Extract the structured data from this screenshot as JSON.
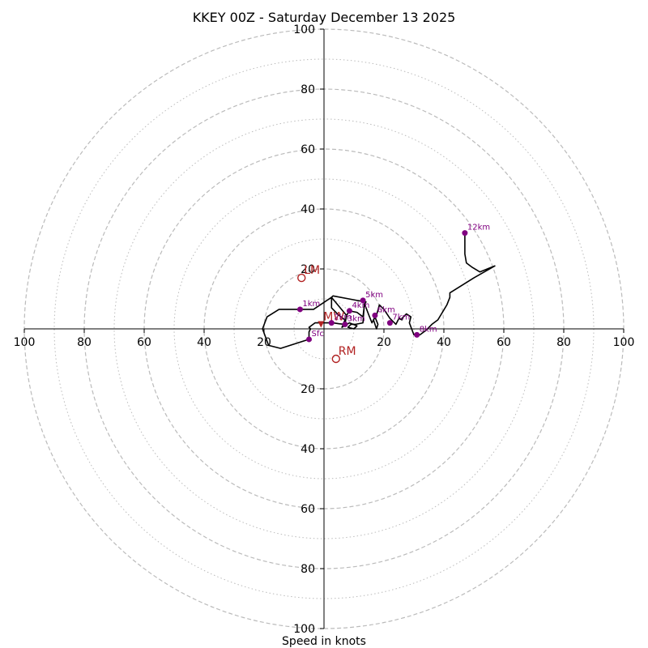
{
  "chart_data": {
    "type": "hodograph",
    "title": "KKEY 00Z - Saturday December 13 2025",
    "xlabel": "Speed in knots",
    "range": [
      -100,
      100
    ],
    "ring_major": [
      20,
      40,
      60,
      80,
      100
    ],
    "ring_minor": [
      10,
      30,
      50,
      70,
      90
    ],
    "ticks": {
      "x_left": [
        100,
        80,
        60,
        40,
        20
      ],
      "x_right": [
        20,
        40,
        60,
        80,
        100
      ],
      "y_top": [
        100,
        80,
        60,
        40,
        20
      ],
      "y_bottom": [
        20,
        40,
        60,
        80,
        100
      ]
    },
    "colors": {
      "trace": "#000000",
      "height_marker": "#800080",
      "motion": "#b22222",
      "grid": "#bbbbbb"
    },
    "hodograph_trace": [
      [
        -5,
        -3.5
      ],
      [
        -5,
        -1
      ],
      [
        -4.5,
        0
      ],
      [
        -5,
        0.5
      ],
      [
        -3,
        2
      ],
      [
        -1,
        2
      ],
      [
        1,
        2
      ],
      [
        3,
        2
      ],
      [
        5,
        1.7
      ],
      [
        7,
        1.5
      ],
      [
        7.5,
        4.5
      ],
      [
        2.5,
        10.5
      ],
      [
        -3.5,
        6.5
      ],
      [
        -8,
        6.5
      ],
      [
        -15,
        6.5
      ],
      [
        -19,
        4
      ],
      [
        -20.5,
        0
      ],
      [
        -18.5,
        -5.5
      ],
      [
        -14.5,
        -6.5
      ],
      [
        -5,
        -3.5
      ],
      [
        -5,
        -1
      ],
      [
        -4.5,
        0
      ],
      [
        -5,
        0.5
      ],
      [
        -3,
        2
      ],
      [
        -1,
        2
      ],
      [
        1,
        2
      ],
      [
        3,
        2
      ],
      [
        5,
        1.7
      ],
      [
        7,
        1.5
      ],
      [
        7.5,
        4.5
      ],
      [
        8.5,
        6
      ],
      [
        11,
        5.5
      ],
      [
        13,
        4
      ],
      [
        13.5,
        8
      ],
      [
        14,
        9
      ],
      [
        11,
        9.5
      ],
      [
        3,
        11
      ],
      [
        2.5,
        10.5
      ],
      [
        2.5,
        7
      ],
      [
        5,
        4.5
      ],
      [
        7,
        3
      ],
      [
        6,
        0.5
      ],
      [
        8.5,
        2
      ],
      [
        11,
        1
      ],
      [
        10,
        0
      ],
      [
        8,
        0.5
      ],
      [
        9,
        1.5
      ],
      [
        10.5,
        1.5
      ],
      [
        13,
        2
      ],
      [
        13.5,
        8.5
      ],
      [
        15,
        4.5
      ],
      [
        16,
        2
      ],
      [
        17,
        4
      ],
      [
        18,
        1.5
      ],
      [
        17.5,
        0
      ],
      [
        16.5,
        3
      ],
      [
        17.5,
        4.5
      ],
      [
        18.5,
        8
      ],
      [
        20,
        6.5
      ],
      [
        22,
        3.5
      ],
      [
        24,
        1.5
      ],
      [
        25,
        3.5
      ],
      [
        26,
        3
      ],
      [
        26,
        3.5
      ],
      [
        27.5,
        5
      ],
      [
        29,
        4
      ],
      [
        28.5,
        2
      ],
      [
        30,
        -2
      ],
      [
        31,
        -2
      ],
      [
        32,
        -2
      ],
      [
        34,
        -0.5
      ],
      [
        36,
        1.5
      ],
      [
        38,
        3
      ],
      [
        41,
        8
      ],
      [
        42,
        10.5
      ],
      [
        42,
        12
      ],
      [
        50,
        17
      ],
      [
        57,
        21
      ],
      [
        52,
        19
      ],
      [
        49.5,
        20.5
      ],
      [
        47.5,
        22
      ],
      [
        47,
        25
      ],
      [
        47,
        29
      ],
      [
        47,
        32
      ]
    ],
    "height_markers": [
      {
        "label": "Sfc",
        "u": -5,
        "v": -3.5
      },
      {
        "label": "1km",
        "u": -8,
        "v": 6.5
      },
      {
        "label": "2km",
        "u": 2.5,
        "v": 2
      },
      {
        "label": "3km",
        "u": 7,
        "v": 1.5
      },
      {
        "label": "4km",
        "u": 8.5,
        "v": 6
      },
      {
        "label": "5km",
        "u": 13,
        "v": 9.5
      },
      {
        "label": "6km",
        "u": 17,
        "v": 4.5
      },
      {
        "label": "7km",
        "u": 22,
        "v": 2
      },
      {
        "label": "8km",
        "u": 31,
        "v": -2
      },
      {
        "label": "12km",
        "u": 47,
        "v": 32
      }
    ],
    "storm_motions": [
      {
        "label": "LM",
        "u": -7.5,
        "v": 17,
        "marker": "circle"
      },
      {
        "label": "RM",
        "u": 4,
        "v": -10,
        "marker": "circle"
      },
      {
        "label": "MW",
        "u": -1,
        "v": 1.5,
        "marker": "triangle"
      }
    ]
  }
}
